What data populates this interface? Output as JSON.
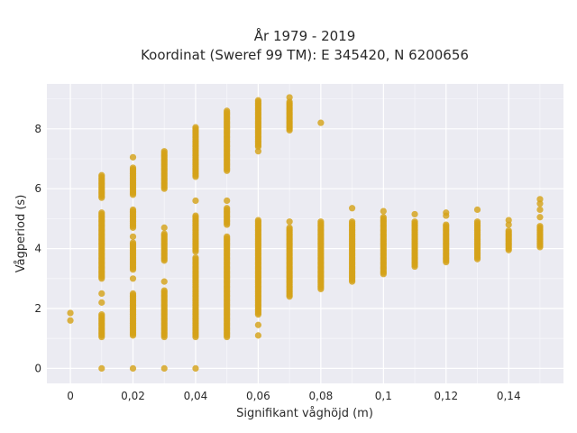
{
  "chart_data": {
    "type": "scatter",
    "title": "År 1979 - 2019",
    "subtitle": "Koordinat (Sweref 99 TM): E 345420, N 6200656",
    "xlabel": "Signifikant våghöjd (m)",
    "ylabel": "Vågperiod (s)",
    "xlim": [
      -0.0075,
      0.1575
    ],
    "ylim": [
      -0.5,
      9.5
    ],
    "x_ticks": [
      0,
      0.02,
      0.04,
      0.06,
      0.08,
      0.1,
      0.12,
      0.14
    ],
    "x_tick_labels": [
      "0",
      "0,02",
      "0,04",
      "0,06",
      "0,08",
      "0,1",
      "0,12",
      "0,14"
    ],
    "y_ticks": [
      0,
      2,
      4,
      6,
      8
    ],
    "y_tick_labels": [
      "0",
      "2",
      "4",
      "6",
      "8"
    ],
    "grid": true,
    "marker_color": "#d4a21a",
    "plot_background": "#ebebf2",
    "columns": [
      {
        "x": 0.0,
        "ranges": [],
        "points": [
          1.6,
          1.85
        ]
      },
      {
        "x": 0.01,
        "ranges": [
          [
            1.05,
            1.8
          ],
          [
            3.0,
            5.2
          ],
          [
            5.7,
            6.45
          ]
        ],
        "points": [
          0.0,
          2.2,
          2.5
        ]
      },
      {
        "x": 0.02,
        "ranges": [
          [
            1.1,
            2.5
          ],
          [
            3.3,
            4.2
          ],
          [
            4.7,
            5.3
          ],
          [
            5.8,
            6.7
          ]
        ],
        "points": [
          0.0,
          3.0,
          4.4,
          7.05
        ]
      },
      {
        "x": 0.03,
        "ranges": [
          [
            1.05,
            2.6
          ],
          [
            3.6,
            4.5
          ],
          [
            6.0,
            7.25
          ]
        ],
        "points": [
          0.0,
          2.9,
          4.7
        ]
      },
      {
        "x": 0.04,
        "ranges": [
          [
            1.05,
            3.7
          ],
          [
            3.9,
            5.1
          ],
          [
            6.4,
            8.05
          ]
        ],
        "points": [
          0.0,
          5.6
        ]
      },
      {
        "x": 0.05,
        "ranges": [
          [
            1.05,
            4.4
          ],
          [
            4.8,
            5.35
          ],
          [
            6.6,
            8.6
          ]
        ],
        "points": [
          5.6
        ]
      },
      {
        "x": 0.06,
        "ranges": [
          [
            1.8,
            4.95
          ],
          [
            7.4,
            8.95
          ]
        ],
        "points": [
          1.1,
          1.45,
          7.25
        ]
      },
      {
        "x": 0.07,
        "ranges": [
          [
            2.4,
            4.7
          ],
          [
            7.95,
            8.9
          ]
        ],
        "points": [
          4.9,
          9.05
        ]
      },
      {
        "x": 0.08,
        "ranges": [
          [
            2.65,
            4.9
          ]
        ],
        "points": [
          8.2
        ]
      },
      {
        "x": 0.09,
        "ranges": [
          [
            2.9,
            4.9
          ]
        ],
        "points": [
          5.35
        ]
      },
      {
        "x": 0.1,
        "ranges": [
          [
            3.15,
            5.05
          ]
        ],
        "points": [
          5.25
        ]
      },
      {
        "x": 0.11,
        "ranges": [
          [
            3.4,
            4.9
          ]
        ],
        "points": [
          5.15
        ]
      },
      {
        "x": 0.12,
        "ranges": [
          [
            3.55,
            4.8
          ]
        ],
        "points": [
          5.1,
          5.2
        ]
      },
      {
        "x": 0.13,
        "ranges": [
          [
            3.65,
            4.9
          ]
        ],
        "points": [
          5.3
        ]
      },
      {
        "x": 0.14,
        "ranges": [
          [
            3.95,
            4.6
          ]
        ],
        "points": [
          4.8,
          4.95
        ]
      },
      {
        "x": 0.15,
        "ranges": [
          [
            4.05,
            4.75
          ]
        ],
        "points": [
          5.05,
          5.3,
          5.5,
          5.65
        ]
      }
    ]
  }
}
